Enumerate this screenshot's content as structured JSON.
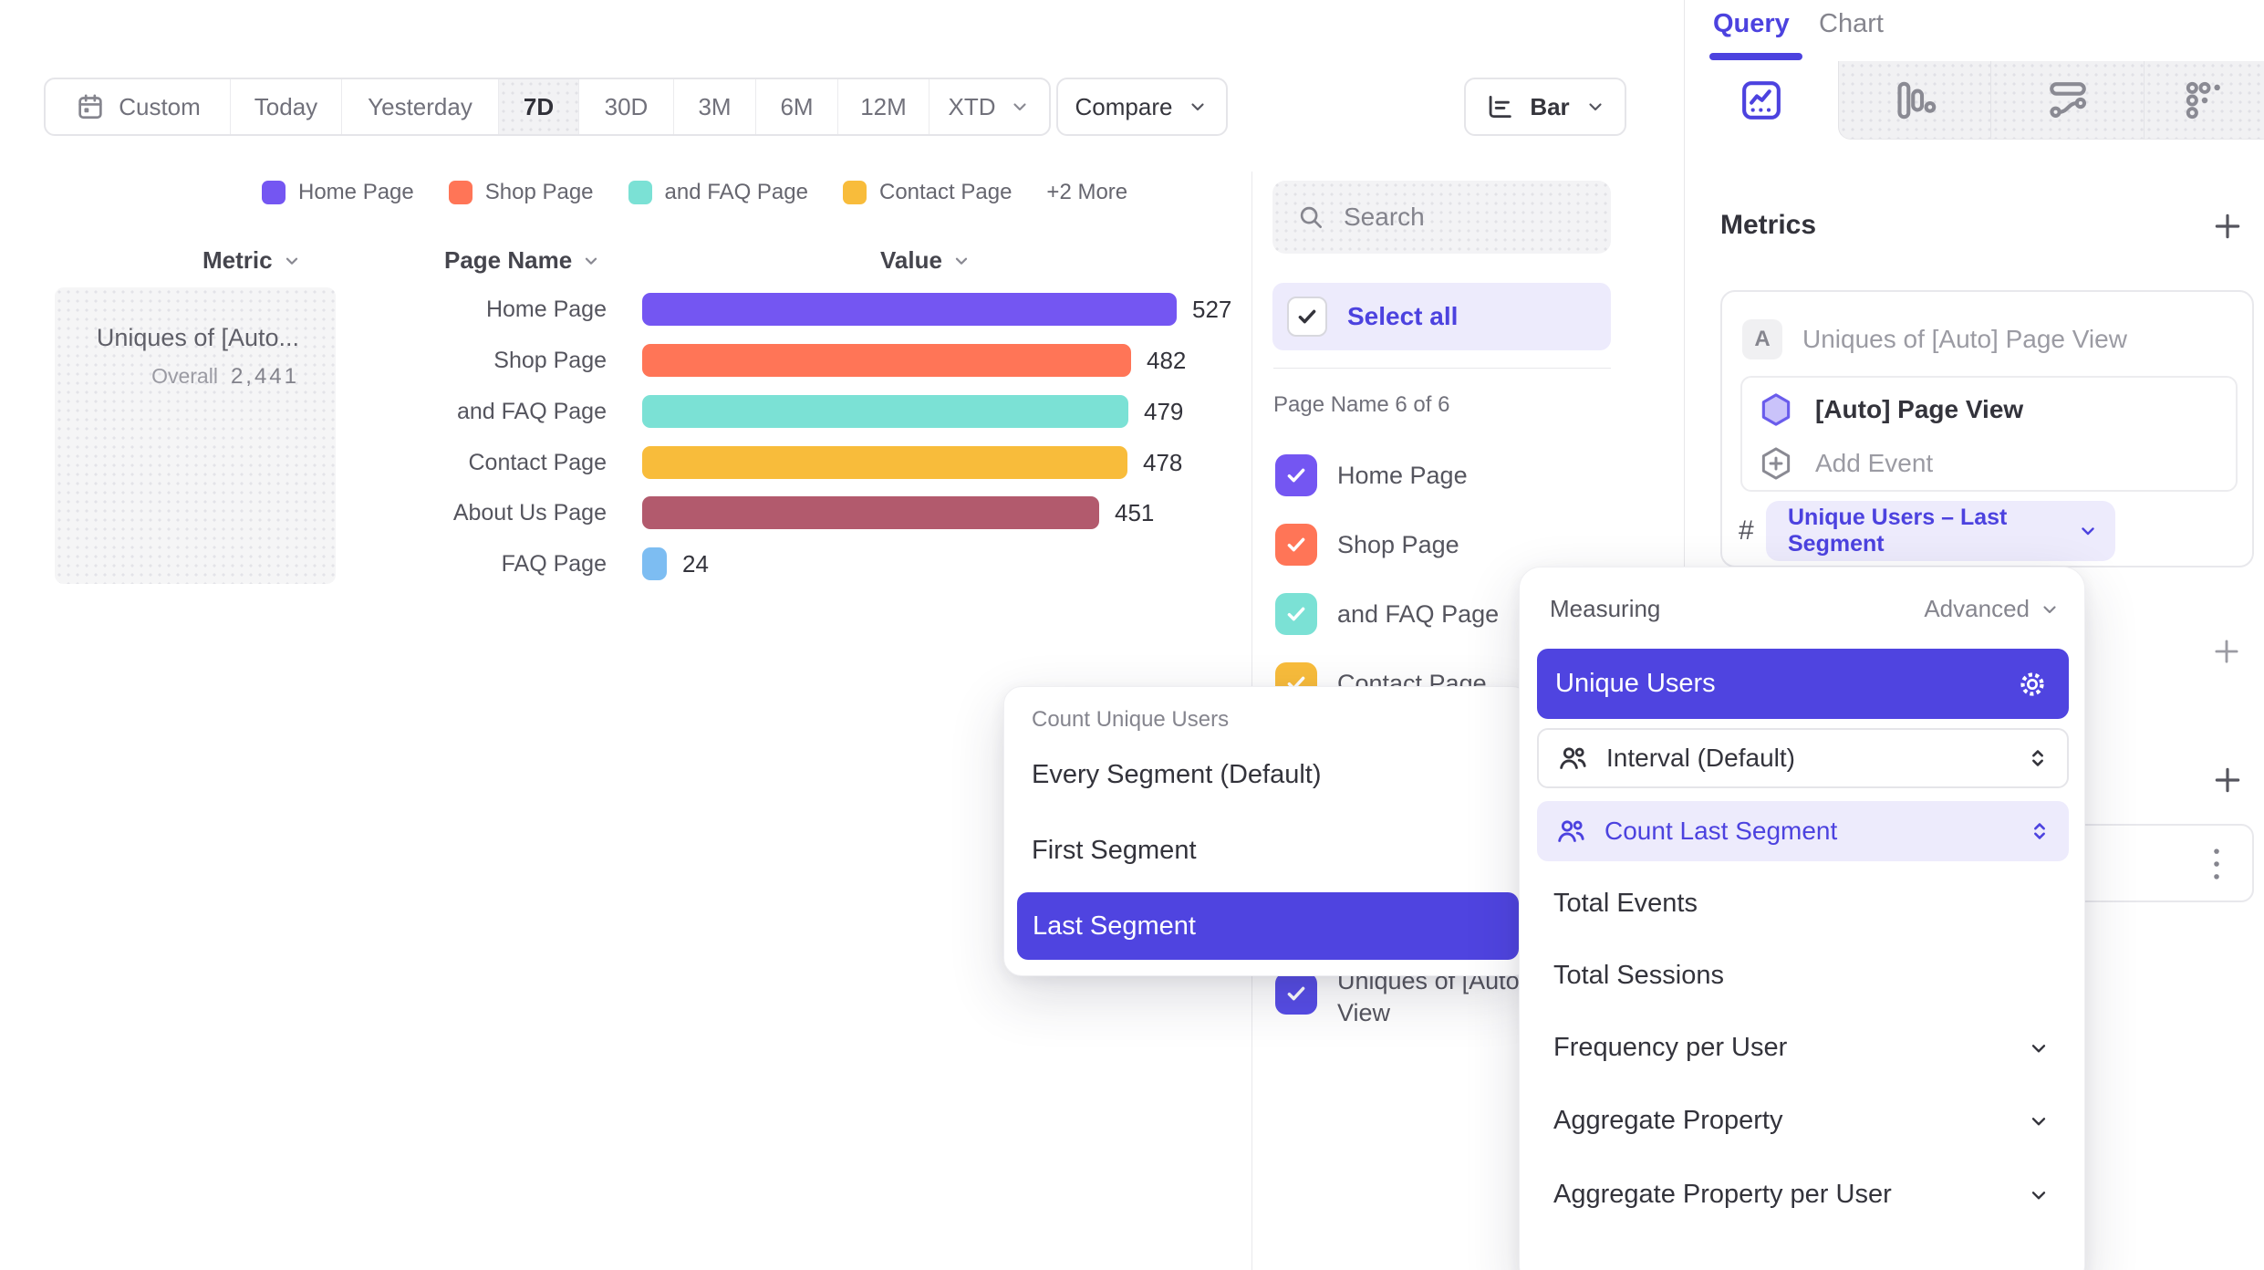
{
  "colors": {
    "accent": "#4F44E0",
    "accent_text": "#4C42DF",
    "accent_soft": "#EDEBFC",
    "metric_check": "#564CE6"
  },
  "toolbar": {
    "date_ranges": [
      "Custom",
      "Today",
      "Yesterday",
      "7D",
      "30D",
      "3M",
      "6M",
      "12M",
      "XTD"
    ],
    "active_range": "7D",
    "compare_label": "Compare",
    "chart_type_label": "Bar"
  },
  "legend": {
    "items": [
      {
        "label": "Home Page"
      },
      {
        "label": "Shop Page"
      },
      {
        "label": "and FAQ Page"
      },
      {
        "label": "Contact Page"
      }
    ],
    "more_label": "+2 More"
  },
  "chart_data": {
    "type": "bar",
    "orientation": "horizontal",
    "columns": {
      "metric": "Metric",
      "category": "Page Name",
      "value": "Value"
    },
    "metric": {
      "name": "Uniques of [Auto...",
      "overall_label": "Overall",
      "overall_value": "2,441"
    },
    "categories": [
      "Home Page",
      "Shop Page",
      "and FAQ Page",
      "Contact Page",
      "About Us Page",
      "FAQ Page"
    ],
    "values": [
      527,
      482,
      479,
      478,
      451,
      24
    ],
    "colors": [
      "#7456F2",
      "#FF7557",
      "#7BE1D5",
      "#F8BC3B",
      "#B25A6D",
      "#7DBDF2"
    ],
    "max_value": 527,
    "grid": false,
    "legend_position": "top"
  },
  "filter_panel": {
    "search_placeholder": "Search",
    "select_all_label": "Select all",
    "group_label": "Page Name 6 of 6",
    "items": [
      {
        "label": "Home Page",
        "color": "#7456F2",
        "checked": true
      },
      {
        "label": "Shop Page",
        "color": "#FF7557",
        "checked": true
      },
      {
        "label": "and FAQ Page",
        "color": "#7BE1D5",
        "checked": true
      },
      {
        "label": "Contact Page",
        "color": "#F8BC3B",
        "checked": true
      }
    ],
    "metric_item": {
      "label": "Uniques of [Auto] Page View",
      "line1": "Uniques of [Auto] Page",
      "line2": "View",
      "color": "#564CE6",
      "checked": true
    }
  },
  "segment_popup": {
    "header": "Count Unique Users",
    "options": [
      "Every Segment (Default)",
      "First Segment",
      "Last Segment"
    ],
    "selected": "Last Segment"
  },
  "measuring_popup": {
    "header": "Measuring",
    "advanced_label": "Advanced",
    "selected_option": "Unique Users",
    "rows": [
      {
        "label": "Interval (Default)",
        "state": "default"
      },
      {
        "label": "Count Last Segment",
        "state": "selected"
      }
    ],
    "options": [
      {
        "label": "Total Events",
        "expandable": false
      },
      {
        "label": "Total Sessions",
        "expandable": false
      },
      {
        "label": "Frequency per User",
        "expandable": true
      },
      {
        "label": "Aggregate Property",
        "expandable": true
      },
      {
        "label": "Aggregate Property per User",
        "expandable": true
      }
    ]
  },
  "query_panel": {
    "tabs": [
      "Query",
      "Chart"
    ],
    "active_tab": "Query",
    "metrics_heading": "Metrics",
    "metric_row_badge": "A",
    "metric_row_title": "Uniques of [Auto] Page View",
    "event_name": "[Auto] Page View",
    "add_event_label": "Add Event",
    "hash_symbol": "#",
    "measurement_pill": "Unique Users – Last Segment"
  },
  "icons": [
    "calendar-icon",
    "chevron-down-icon",
    "search-icon",
    "check-icon",
    "bar-chart-icon",
    "insights-icon",
    "funnel-icon",
    "flow-icon",
    "retention-icon",
    "people-icon",
    "gear-icon",
    "stepper-icon",
    "hexagon-icon",
    "hexagon-plus-icon",
    "plus-icon",
    "dots-vertical-icon"
  ]
}
